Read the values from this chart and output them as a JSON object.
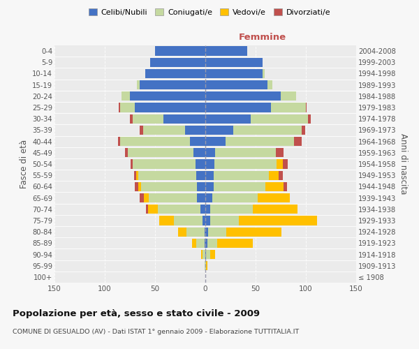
{
  "age_groups": [
    "100+",
    "95-99",
    "90-94",
    "85-89",
    "80-84",
    "75-79",
    "70-74",
    "65-69",
    "60-64",
    "55-59",
    "50-54",
    "45-49",
    "40-44",
    "35-39",
    "30-34",
    "25-29",
    "20-24",
    "15-19",
    "10-14",
    "5-9",
    "0-4"
  ],
  "birth_years": [
    "≤ 1908",
    "1909-1913",
    "1914-1918",
    "1919-1923",
    "1924-1928",
    "1929-1933",
    "1934-1938",
    "1939-1943",
    "1944-1948",
    "1949-1953",
    "1954-1958",
    "1959-1963",
    "1964-1968",
    "1969-1973",
    "1974-1978",
    "1979-1983",
    "1984-1988",
    "1989-1993",
    "1994-1998",
    "1999-2003",
    "2004-2008"
  ],
  "m_celibi": [
    0,
    0,
    0,
    1,
    1,
    3,
    5,
    8,
    8,
    9,
    10,
    12,
    15,
    20,
    42,
    70,
    75,
    65,
    60,
    55,
    50
  ],
  "m_coniugati": [
    0,
    1,
    3,
    8,
    18,
    28,
    42,
    48,
    56,
    58,
    62,
    65,
    70,
    42,
    30,
    15,
    8,
    3,
    0,
    0,
    0
  ],
  "m_vedovi": [
    0,
    0,
    1,
    4,
    8,
    15,
    10,
    5,
    3,
    2,
    0,
    0,
    0,
    0,
    0,
    0,
    0,
    0,
    0,
    0,
    0
  ],
  "m_divorziati": [
    0,
    0,
    0,
    0,
    0,
    0,
    2,
    4,
    3,
    2,
    2,
    3,
    2,
    3,
    3,
    1,
    0,
    0,
    0,
    0,
    0
  ],
  "f_nubili": [
    0,
    0,
    1,
    2,
    3,
    5,
    5,
    7,
    8,
    8,
    9,
    10,
    20,
    28,
    45,
    65,
    75,
    62,
    57,
    57,
    42
  ],
  "f_coniugate": [
    0,
    1,
    4,
    10,
    18,
    28,
    42,
    45,
    52,
    55,
    62,
    60,
    68,
    68,
    57,
    35,
    15,
    5,
    2,
    0,
    0
  ],
  "f_vedove": [
    0,
    1,
    5,
    35,
    55,
    78,
    45,
    32,
    18,
    10,
    6,
    0,
    0,
    0,
    0,
    0,
    0,
    0,
    0,
    0,
    0
  ],
  "f_divorziate": [
    0,
    0,
    0,
    0,
    0,
    0,
    0,
    0,
    3,
    4,
    5,
    8,
    8,
    3,
    3,
    1,
    0,
    0,
    0,
    0,
    0
  ],
  "colors": {
    "celibi": "#4472c4",
    "coniugati": "#c5d9a0",
    "vedovi": "#ffc000",
    "divorziati": "#c0504d"
  },
  "legend_labels": [
    "Celibi/Nubili",
    "Coniugati/e",
    "Vedovi/e",
    "Divorziati/e"
  ],
  "title": "Popolazione per età, sesso e stato civile - 2009",
  "subtitle": "COMUNE DI GESUALDO (AV) - Dati ISTAT 1° gennaio 2009 - Elaborazione TUTTITALIA.IT",
  "ylabel_left": "Fasce di età",
  "ylabel_right": "Anni di nascita",
  "label_femmine": "Femmine",
  "xlim": 150,
  "bg_color": "#f7f7f7",
  "plot_bg": "#ebebeb"
}
